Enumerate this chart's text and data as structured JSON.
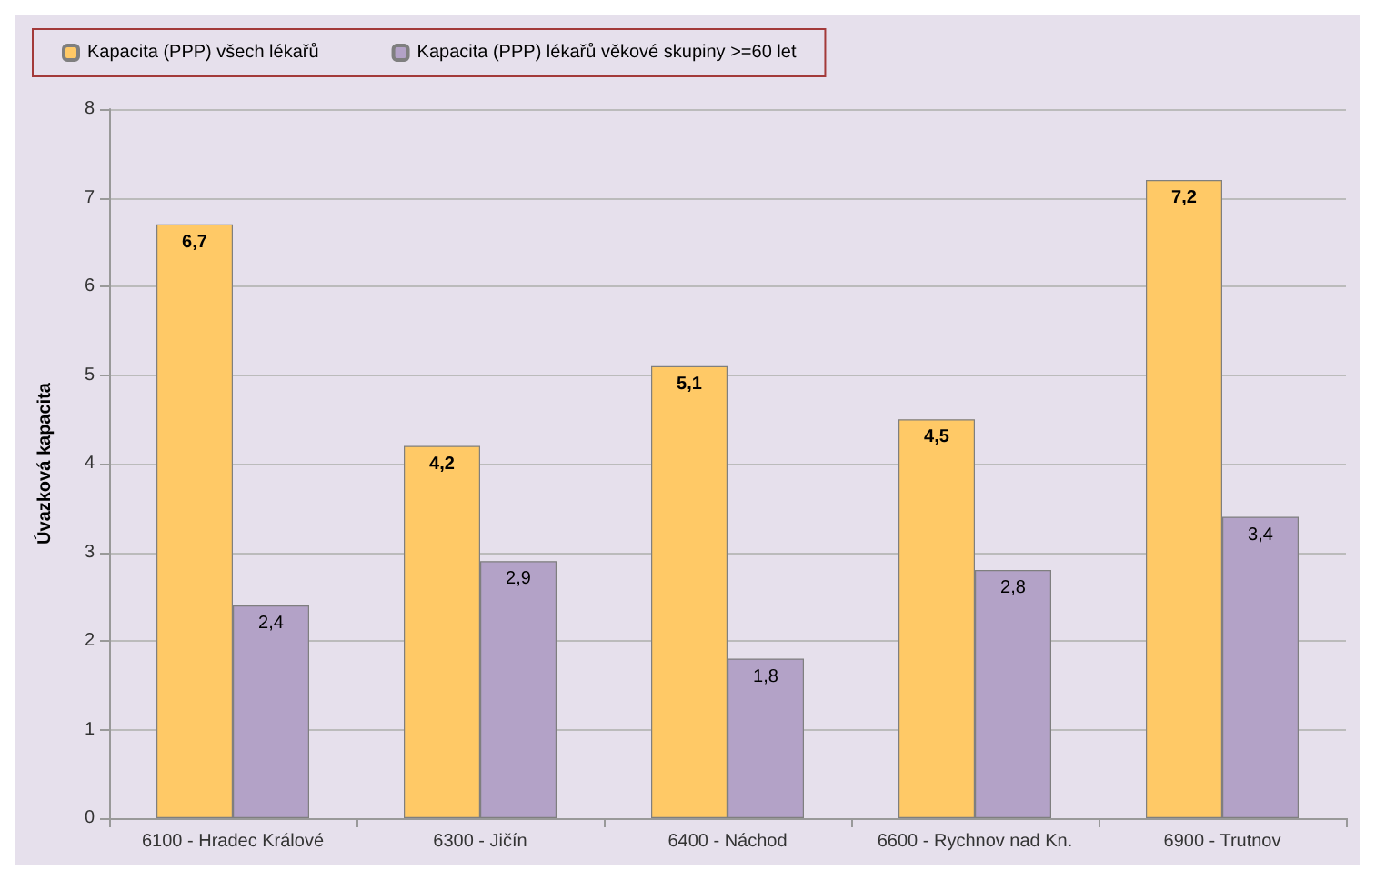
{
  "chart_data": {
    "type": "bar",
    "ylabel": "Úvazková kapacita",
    "categories": [
      "6100 - Hradec Králové",
      "6300 - Jičín",
      "6400 - Náchod",
      "6600 - Rychnov nad Kn.",
      "6900 - Trutnov"
    ],
    "series": [
      {
        "name": "Kapacita (PPP) všech lékařů",
        "color": "#ffc966",
        "values": [
          6.7,
          4.2,
          5.1,
          4.5,
          7.2
        ],
        "value_labels": [
          "6,7",
          "4,2",
          "5,1",
          "4,5",
          "7,2"
        ]
      },
      {
        "name": "Kapacita (PPP) lékařů věkové skupiny >=60 let",
        "color": "#b3a2c7",
        "values": [
          2.4,
          2.9,
          1.8,
          2.8,
          3.4
        ],
        "value_labels": [
          "2,4",
          "2,9",
          "1,8",
          "2,8",
          "3,4"
        ]
      }
    ],
    "ylim": [
      0,
      8
    ],
    "yticks": [
      0,
      1,
      2,
      3,
      4,
      5,
      6,
      7,
      8
    ],
    "grid": "y",
    "legend": "top left"
  }
}
